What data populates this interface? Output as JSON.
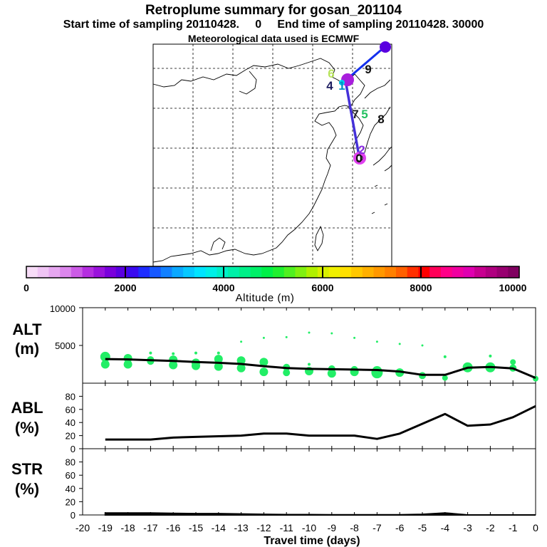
{
  "header": {
    "title": "Retroplume summary for gosan_201104",
    "subtitle": "Start time of sampling 20110428.     0     End time of sampling 20110428. 30000",
    "met_line": "Meteorological data used is ECMWF"
  },
  "map": {
    "day_labels": [
      {
        "text": "6",
        "color": "#b7e35a"
      },
      {
        "text": "4",
        "color": "#1d1d60"
      },
      {
        "text": "1",
        "color": "#0090c0"
      },
      {
        "text": "9",
        "color": "#111111"
      },
      {
        "text": "7",
        "color": "#222222"
      },
      {
        "text": "5",
        "color": "#22c060"
      },
      {
        "text": "8",
        "color": "#111111"
      },
      {
        "text": "0",
        "color": "#111111"
      },
      {
        "text": "2",
        "color": "#8a2be2"
      }
    ]
  },
  "colorbar": {
    "ticks": [
      "0",
      "2000",
      "4000",
      "6000",
      "8000",
      "10000"
    ],
    "label": "Altitude (m)",
    "colors": [
      "#f7dcf7",
      "#efc4f4",
      "#e6a7f0",
      "#dc86ec",
      "#cc5be6",
      "#b52ee0",
      "#9a12dc",
      "#7a00dc",
      "#5a00e0",
      "#3a0af0",
      "#1e2cff",
      "#1658ff",
      "#1180ff",
      "#0aa8ff",
      "#05c8ff",
      "#00e4ff",
      "#00f0e8",
      "#00f0c8",
      "#00f0a8",
      "#00f088",
      "#00f068",
      "#00f048",
      "#20f030",
      "#50f020",
      "#80f010",
      "#b0f000",
      "#d8f000",
      "#f0f000",
      "#ffe000",
      "#ffc800",
      "#ffb000",
      "#ff9800",
      "#ff8000",
      "#ff6000",
      "#ff3000",
      "#ff0000",
      "#ff0058",
      "#ff0088",
      "#f000a0",
      "#e000b0",
      "#c80090",
      "#b00080",
      "#980070",
      "#800060"
    ]
  },
  "chart_data": [
    {
      "type": "line",
      "panel": "ALT",
      "title": "ALT",
      "units": "(m)",
      "x": [
        -19,
        -18,
        -17,
        -16,
        -15,
        -14,
        -13,
        -12,
        -11,
        -10,
        -9,
        -8,
        -7,
        -6,
        -5,
        -4,
        -3,
        -2,
        -1,
        0
      ],
      "values": [
        3200,
        3150,
        3050,
        2950,
        2800,
        2700,
        2550,
        2250,
        2000,
        1900,
        1850,
        1800,
        1750,
        1550,
        1100,
        1100,
        2050,
        2150,
        1950,
        700
      ],
      "ylim": [
        0,
        10000
      ],
      "yticks": [
        5000,
        10000
      ],
      "clusters": [
        {
          "x": -19,
          "ys": [
            3500,
            2500
          ],
          "sizes": [
            7,
            6
          ]
        },
        {
          "x": -18,
          "ys": [
            3300,
            2500
          ],
          "sizes": [
            6,
            6
          ]
        },
        {
          "x": -17,
          "ys": [
            4000,
            3100,
            2900
          ],
          "sizes": [
            2,
            5,
            5
          ]
        },
        {
          "x": -16,
          "ys": [
            3900,
            3100,
            2400
          ],
          "sizes": [
            2,
            6,
            6
          ]
        },
        {
          "x": -15,
          "ys": [
            4000,
            2700,
            2300
          ],
          "sizes": [
            2,
            6,
            6
          ]
        },
        {
          "x": -14,
          "ys": [
            4000,
            3200,
            2200
          ],
          "sizes": [
            2,
            6,
            6
          ]
        },
        {
          "x": -13,
          "ys": [
            5500,
            3000,
            2000
          ],
          "sizes": [
            1.5,
            6,
            6
          ]
        },
        {
          "x": -12,
          "ys": [
            6000,
            2800,
            1500
          ],
          "sizes": [
            1.5,
            6,
            6
          ]
        },
        {
          "x": -11,
          "ys": [
            6100,
            2100,
            1400
          ],
          "sizes": [
            1.5,
            5,
            5
          ]
        },
        {
          "x": -10,
          "ys": [
            6700,
            2500,
            1600
          ],
          "sizes": [
            1.5,
            2,
            6
          ]
        },
        {
          "x": -9,
          "ys": [
            6600,
            1900,
            1300
          ],
          "sizes": [
            1.5,
            5,
            6
          ]
        },
        {
          "x": -8,
          "ys": [
            6000,
            1800,
            1500
          ],
          "sizes": [
            1.5,
            5,
            6
          ]
        },
        {
          "x": -7,
          "ys": [
            5500,
            1600,
            1400
          ],
          "sizes": [
            1.5,
            7,
            8
          ]
        },
        {
          "x": -6,
          "ys": [
            5200,
            1400
          ],
          "sizes": [
            1.5,
            6
          ]
        },
        {
          "x": -5,
          "ys": [
            5000,
            1000
          ],
          "sizes": [
            1.5,
            5
          ]
        },
        {
          "x": -4,
          "ys": [
            3500,
            700
          ],
          "sizes": [
            2,
            4
          ]
        },
        {
          "x": -3,
          "ys": [
            2100
          ],
          "sizes": [
            7
          ]
        },
        {
          "x": -2,
          "ys": [
            3600,
            2100
          ],
          "sizes": [
            2,
            7
          ]
        },
        {
          "x": -1,
          "ys": [
            2800,
            2000
          ],
          "sizes": [
            4,
            5
          ]
        },
        {
          "x": 0,
          "ys": [
            600
          ],
          "sizes": [
            4
          ]
        }
      ]
    },
    {
      "type": "line",
      "panel": "ABL",
      "title": "ABL",
      "units": "(%)",
      "x": [
        -19,
        -18,
        -17,
        -16,
        -15,
        -14,
        -13,
        -12,
        -11,
        -10,
        -9,
        -8,
        -7,
        -6,
        -5,
        -4,
        -3,
        -2,
        -1,
        0
      ],
      "values": [
        14,
        14,
        14,
        17,
        18,
        19,
        20,
        23,
        23,
        20,
        20,
        20,
        15,
        23,
        38,
        53,
        35,
        37,
        48,
        65
      ],
      "ylim": [
        0,
        100
      ],
      "yticks": [
        0,
        20,
        40,
        60,
        80
      ]
    },
    {
      "type": "area",
      "panel": "STR",
      "title": "STR",
      "units": "(%)",
      "x": [
        -19,
        -18,
        -17,
        -16,
        -15,
        -14,
        -13,
        -12,
        -11,
        -10,
        -9,
        -8,
        -7,
        -6,
        -5,
        -4,
        -3,
        -2,
        -1,
        0
      ],
      "values": [
        3,
        3,
        3,
        2.5,
        2,
        2,
        1.5,
        1,
        0.5,
        0.5,
        0.3,
        0.3,
        0.2,
        0.2,
        1,
        3,
        0,
        0,
        0,
        0
      ],
      "ylim": [
        0,
        100
      ],
      "yticks": [
        0,
        20,
        40,
        60,
        80
      ]
    }
  ],
  "xaxis": {
    "ticks": [
      "-20",
      "-19",
      "-18",
      "-17",
      "-16",
      "-15",
      "-14",
      "-13",
      "-12",
      "-11",
      "-10",
      "-9",
      "-8",
      "-7",
      "-6",
      "-5",
      "-4",
      "-3",
      "-2",
      "-1",
      "0"
    ],
    "label": "Travel time (days)"
  }
}
